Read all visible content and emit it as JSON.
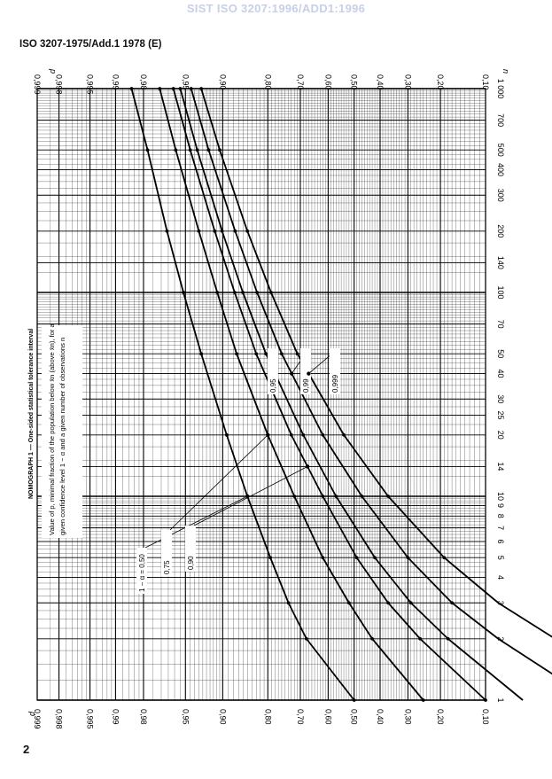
{
  "watermark": "SIST ISO 3207:1996/ADD1:1996",
  "standard_header": "ISO 3207-1975/Add.1 1978 (E)",
  "page_number": "2",
  "chart_data": {
    "type": "line",
    "title": "NOMOGRAPH 1 — One-sided statistical tolerance interval",
    "description": [
      "Value of p, minimal fraction of the population below x̄n (above x̄n), for a",
      "given confidence level 1 − α and a given number of observations n"
    ],
    "p_axis_label": "p",
    "n_axis_label": "n",
    "p_ticks": [
      {
        "value": 0.999,
        "label": "0,999"
      },
      {
        "value": 0.998,
        "label": "0,998"
      },
      {
        "value": 0.995,
        "label": "0,995"
      },
      {
        "value": 0.99,
        "label": "0,99"
      },
      {
        "value": 0.98,
        "label": "0,98"
      },
      {
        "value": 0.95,
        "label": "0,95"
      },
      {
        "value": 0.9,
        "label": "0,90"
      },
      {
        "value": 0.8,
        "label": "0,80"
      },
      {
        "value": 0.7,
        "label": "0,70"
      },
      {
        "value": 0.6,
        "label": "0,60"
      },
      {
        "value": 0.5,
        "label": "0,50"
      },
      {
        "value": 0.4,
        "label": "0,40"
      },
      {
        "value": 0.3,
        "label": "0,30"
      },
      {
        "value": 0.2,
        "label": "0,20"
      },
      {
        "value": 0.1,
        "label": "0,10"
      }
    ],
    "n_ticks": [
      1,
      2,
      3,
      4,
      5,
      6,
      7,
      8,
      9,
      10,
      14,
      20,
      25,
      30,
      40,
      50,
      70,
      100,
      140,
      200,
      300,
      400,
      500,
      700,
      1000
    ],
    "n_tick_labels": [
      "1",
      "2",
      "3",
      "4",
      "5",
      "6",
      "7",
      "8",
      "9",
      "10",
      "14",
      "20",
      "25",
      "30",
      "40",
      "50",
      "70",
      "100",
      "140",
      "200",
      "300",
      "400",
      "500",
      "700",
      "1 000"
    ],
    "nlim": [
      1,
      1000
    ],
    "plim": [
      0.1,
      0.999
    ],
    "p_scale": "normal-probability",
    "n_scale": "log",
    "grid": true,
    "series": [
      {
        "name": "1 − α = 0,50",
        "n": [
          1,
          2,
          3,
          5,
          10,
          20,
          50,
          100,
          200,
          500,
          1000
        ],
        "p": [
          0.5,
          0.679,
          0.739,
          0.793,
          0.851,
          0.893,
          0.932,
          0.952,
          0.966,
          0.978,
          0.985
        ]
      },
      {
        "name": "0,75",
        "n": [
          1,
          2,
          3,
          5,
          10,
          20,
          50,
          100,
          200,
          500,
          1000
        ],
        "p": [
          0.25,
          0.43,
          0.52,
          0.62,
          0.72,
          0.8,
          0.874,
          0.909,
          0.935,
          0.959,
          0.971
        ]
      },
      {
        "name": "0,90",
        "n": [
          1,
          2,
          3,
          5,
          10,
          20,
          50,
          100,
          200,
          500,
          1000
        ],
        "p": [
          0.1,
          0.26,
          0.37,
          0.49,
          0.62,
          0.73,
          0.83,
          0.878,
          0.913,
          0.945,
          0.961
        ]
      },
      {
        "name": "0,95",
        "n": [
          1,
          2,
          3,
          5,
          10,
          20,
          50,
          100,
          200,
          500,
          1000
        ],
        "p": [
          0.05,
          0.18,
          0.29,
          0.42,
          0.57,
          0.69,
          0.805,
          0.861,
          0.901,
          0.937,
          0.955
        ]
      },
      {
        "name": "0,99",
        "n": [
          1,
          2,
          3,
          5,
          10,
          20,
          50,
          100,
          200,
          500,
          1000
        ],
        "p": [
          0.01,
          0.08,
          0.17,
          0.3,
          0.47,
          0.62,
          0.76,
          0.828,
          0.877,
          0.922,
          0.944
        ]
      },
      {
        "name": "0,999",
        "n": [
          1,
          2,
          3,
          5,
          10,
          20,
          50,
          100,
          200,
          500,
          1000
        ],
        "p": [
          0.001,
          0.025,
          0.08,
          0.19,
          0.37,
          0.54,
          0.71,
          0.791,
          0.851,
          0.905,
          0.932
        ]
      }
    ]
  }
}
